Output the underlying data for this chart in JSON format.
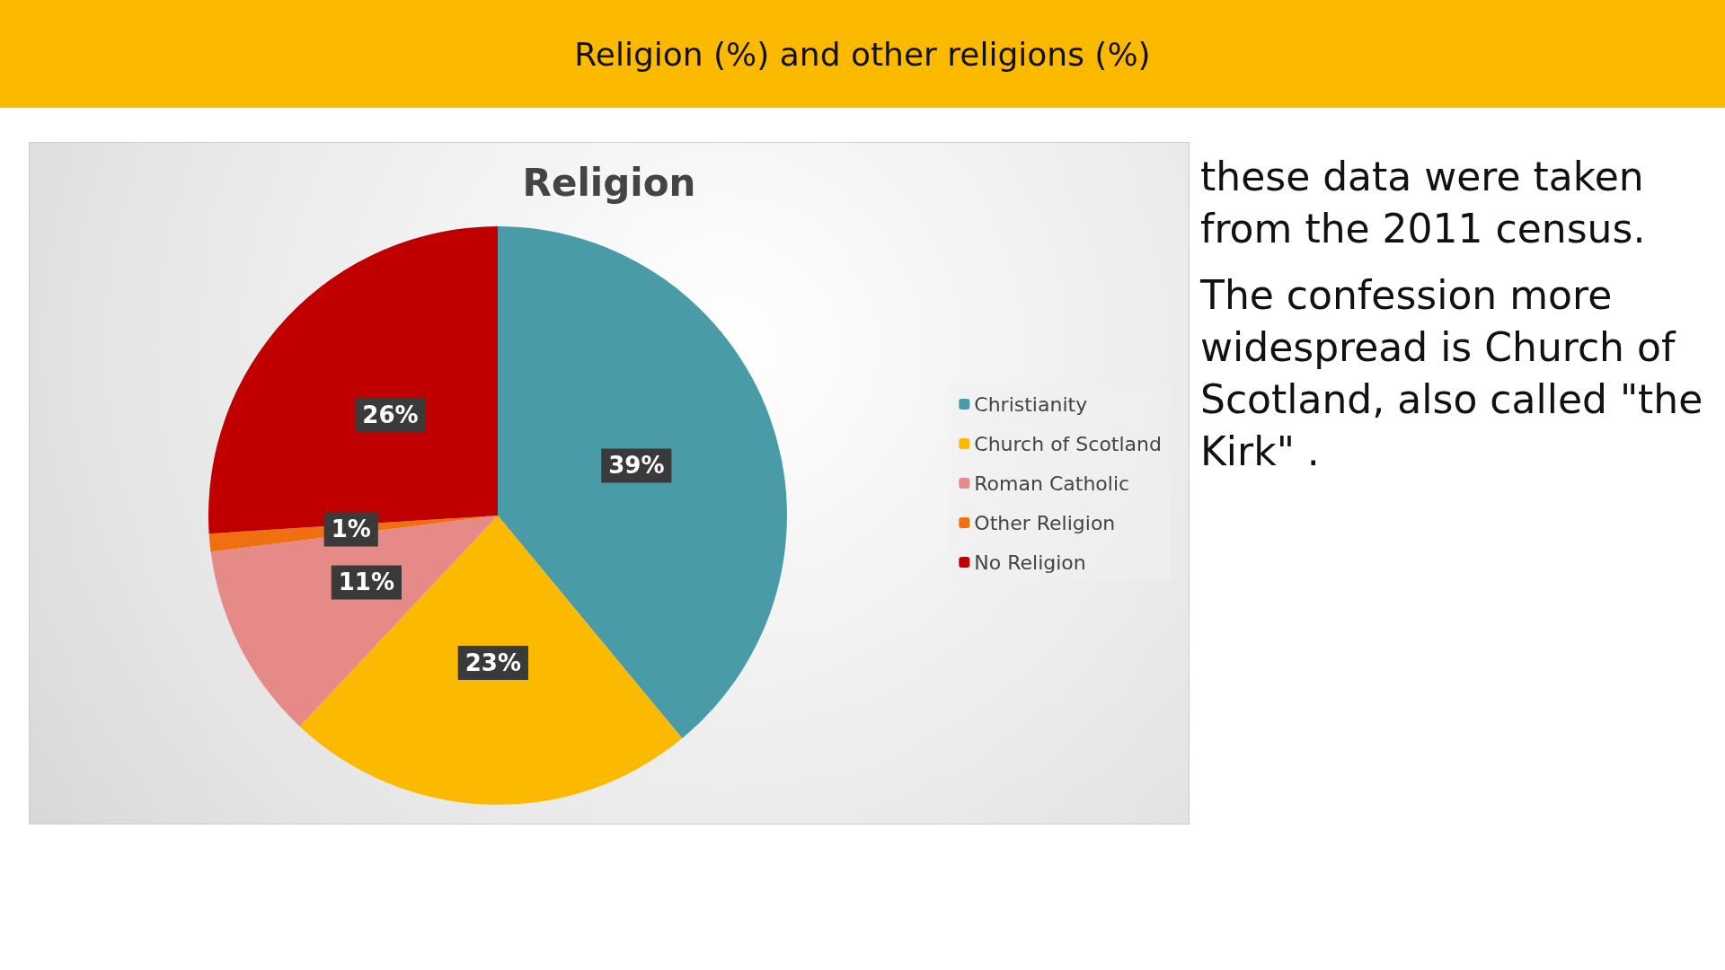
{
  "chart_data": {
    "type": "pie",
    "title": "Religion",
    "categories": [
      "Christianity",
      "Church of Scotland",
      "Roman Catholic",
      "Other Religion",
      "No Religion"
    ],
    "values": [
      39,
      23,
      11,
      1,
      26
    ],
    "colors": [
      "#4a9ba8",
      "#fbb900",
      "#e58a87",
      "#f07010",
      "#c00000"
    ],
    "value_labels": [
      "39%",
      "23%",
      "11%",
      "1%",
      "26%"
    ],
    "legend": "right",
    "annotations": [
      "Religion (%) and other religions (%)",
      "these data were taken from the 2011 census.",
      "The confession more widespread is Church of Scotland, also called \"the Kirk\" ."
    ]
  }
}
